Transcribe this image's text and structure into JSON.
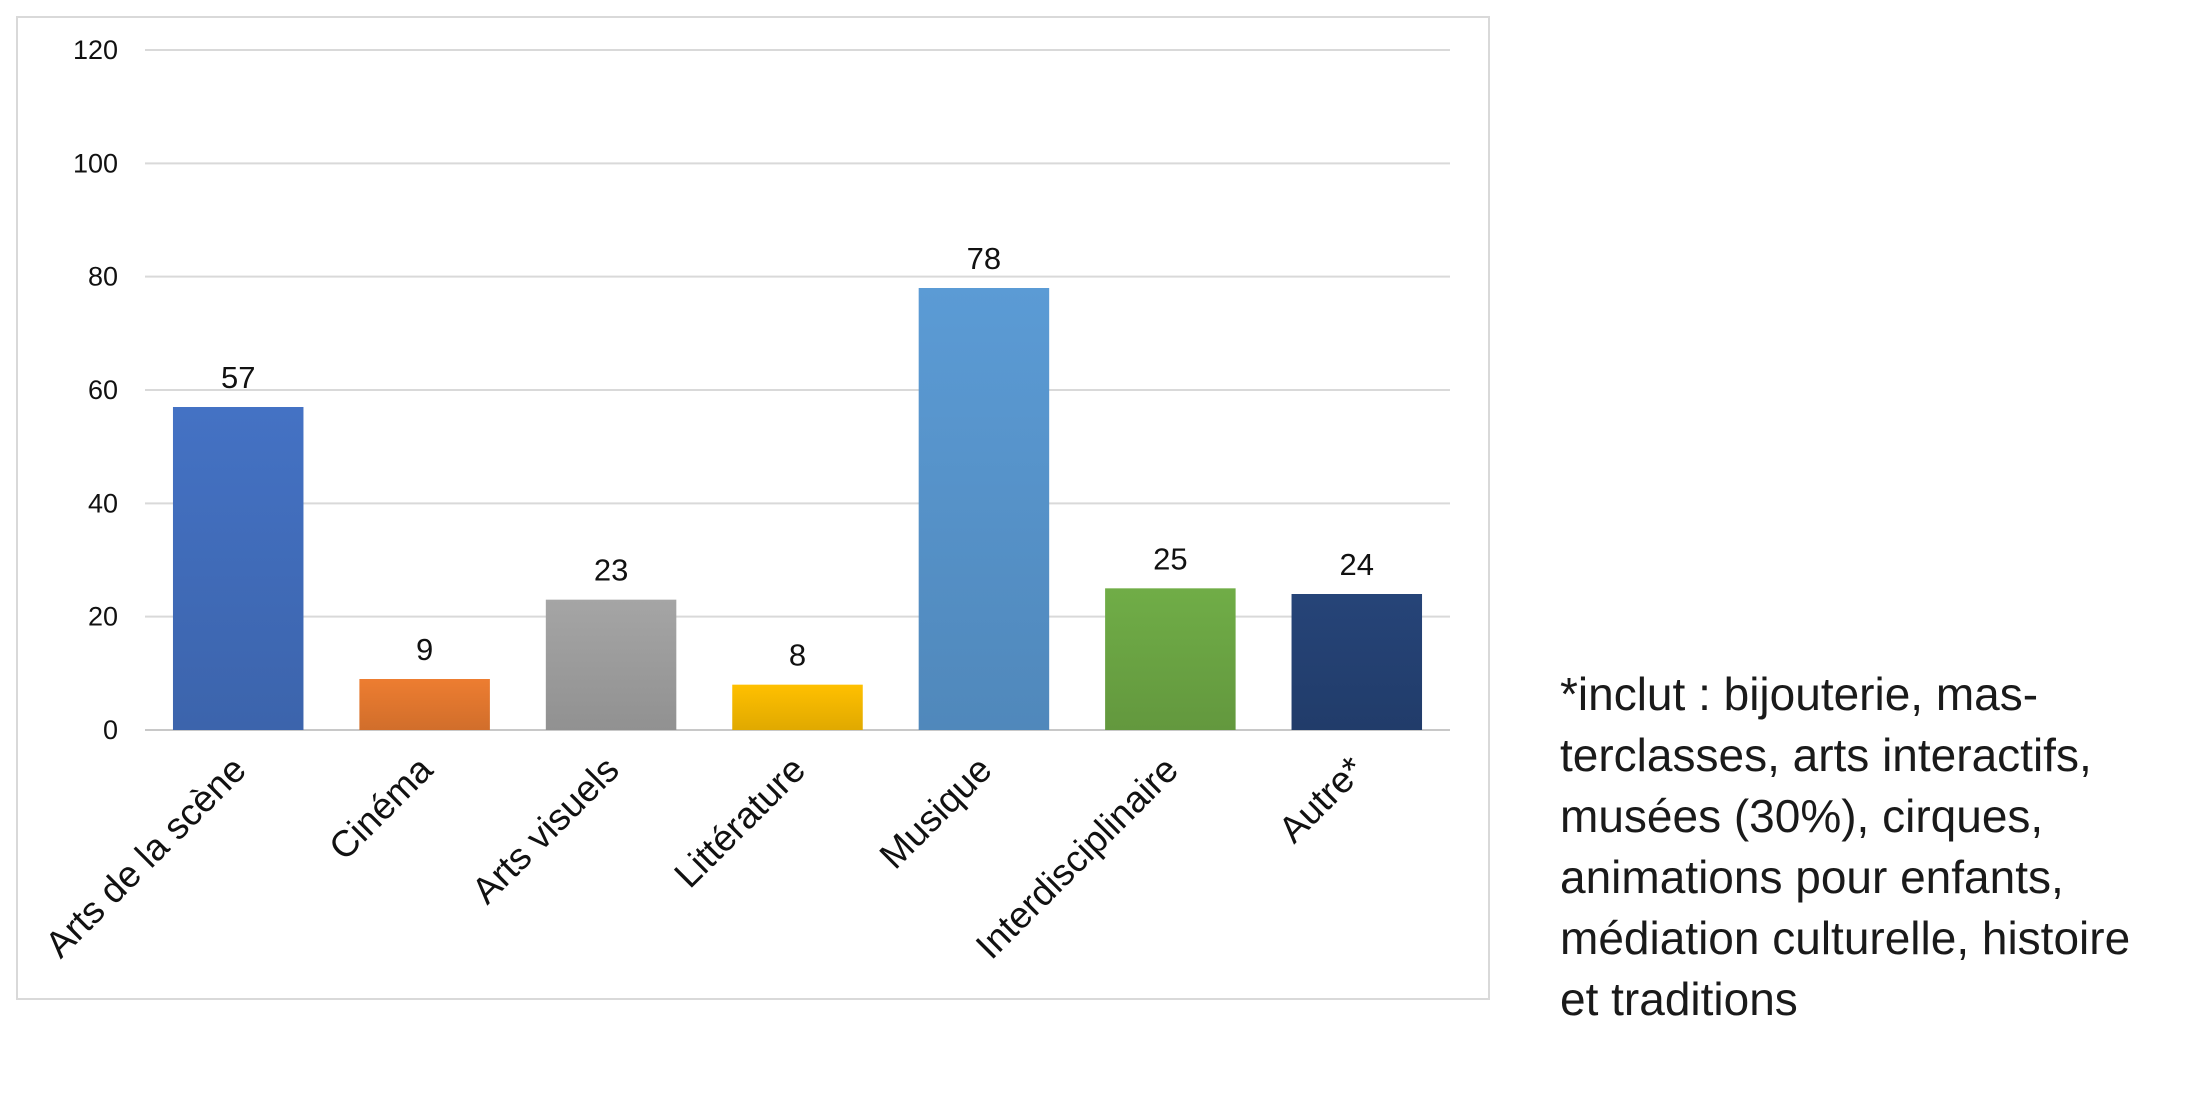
{
  "chart_data": {
    "type": "bar",
    "categories": [
      "Arts de la scène",
      "Cinéma",
      "Arts visuels",
      "Littérature",
      "Musique",
      "Interdisciplinaire",
      "Autre*"
    ],
    "values": [
      57,
      9,
      23,
      8,
      78,
      25,
      24
    ],
    "colors": [
      "#4472c4",
      "#ed7d31",
      "#a5a5a5",
      "#ffc000",
      "#5b9bd5",
      "#70ad47",
      "#264478"
    ],
    "ylim": [
      0,
      120
    ],
    "yticks": [
      0,
      20,
      40,
      60,
      80,
      100,
      120
    ],
    "grid": true,
    "title": "",
    "xlabel": "",
    "ylabel": ""
  },
  "footnote": {
    "lines": [
      "*inclut : bijouterie, mas-",
      "terclasses, arts interactifs,",
      "musées (30%), cirques,",
      "animations pour enfants,",
      "médiation culturelle, histoire",
      "et traditions"
    ]
  }
}
